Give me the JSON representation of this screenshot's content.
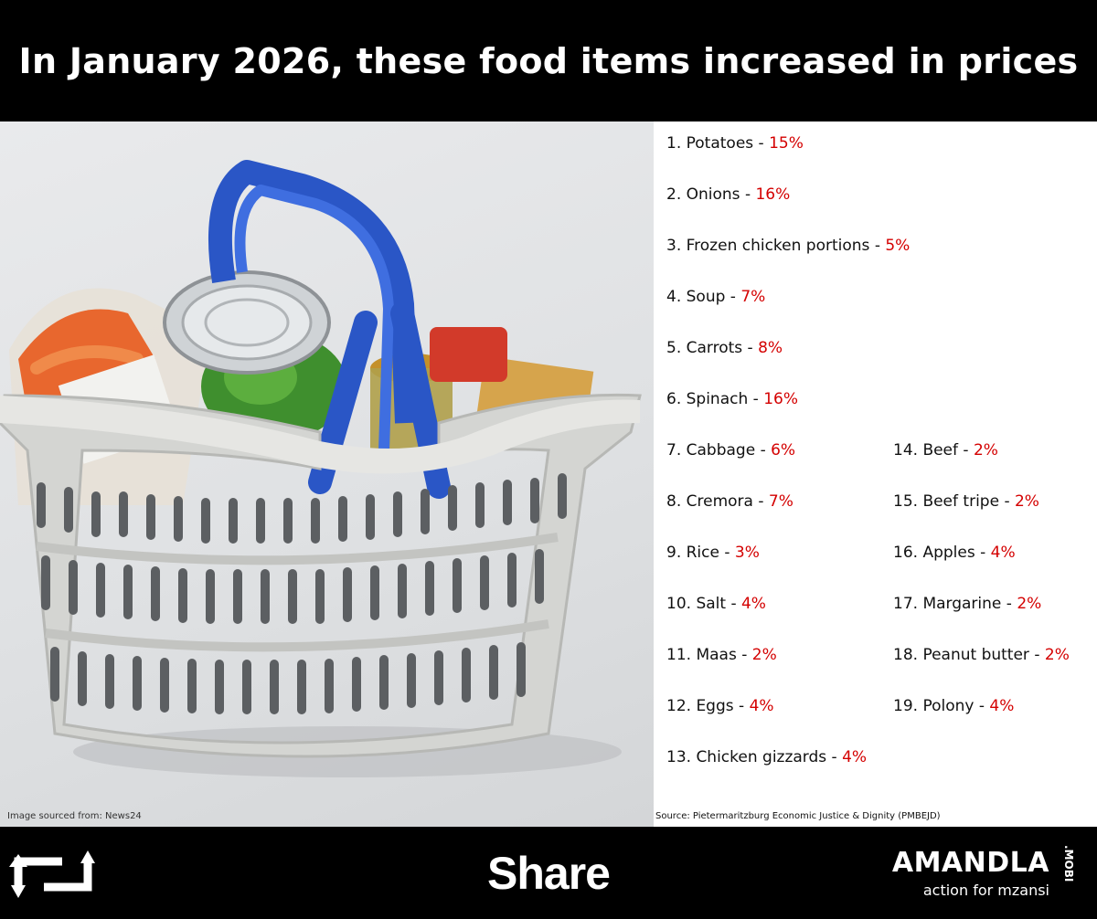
{
  "header": {
    "title": "In January 2026, these food items increased in prices"
  },
  "photo": {
    "credit": "Image sourced from: News24",
    "icon": "grocery-basket-photo"
  },
  "list": {
    "items": [
      {
        "label": "1. Potatoes - ",
        "pct": "15%"
      },
      {
        "label": "2. Onions - ",
        "pct": "16%"
      },
      {
        "label": "3. Frozen chicken portions - ",
        "pct": "5%"
      },
      {
        "label": "4. Soup - ",
        "pct": "7%"
      },
      {
        "label": "5. Carrots - ",
        "pct": "8%"
      },
      {
        "label": "6. Spinach - ",
        "pct": "16%"
      },
      {
        "label": "7. Cabbage - ",
        "pct": "6%"
      },
      {
        "label": "8. Cremora - ",
        "pct": "7%"
      },
      {
        "label": "9. Rice - ",
        "pct": "3%"
      },
      {
        "label": "10. Salt - ",
        "pct": "4%"
      },
      {
        "label": "11. Maas - ",
        "pct": "2%"
      },
      {
        "label": "12. Eggs - ",
        "pct": "4%"
      },
      {
        "label": "13. Chicken gizzards - ",
        "pct": "4%"
      },
      {
        "label": "14. Beef - ",
        "pct": "2%"
      },
      {
        "label": "15. Beef tripe - ",
        "pct": "2%"
      },
      {
        "label": "16. Apples - ",
        "pct": "4%"
      },
      {
        "label": "17. Margarine - ",
        "pct": "2%"
      },
      {
        "label": "18. Peanut butter - ",
        "pct": "2%"
      },
      {
        "label": "19. Polony - ",
        "pct": "4%"
      }
    ],
    "source": "Source: Pietermaritzburg Economic Justice & Dignity (PMBEJD)"
  },
  "footer": {
    "share_label": "Share",
    "share_icon": "retweet-icon",
    "brand_name": "AMANDLA",
    "brand_suffix": ".MOBI",
    "brand_tagline": "action for mzansi"
  },
  "colors": {
    "percent": "#d40000",
    "basket_handle": "#2a56c6",
    "background": "#000000"
  }
}
